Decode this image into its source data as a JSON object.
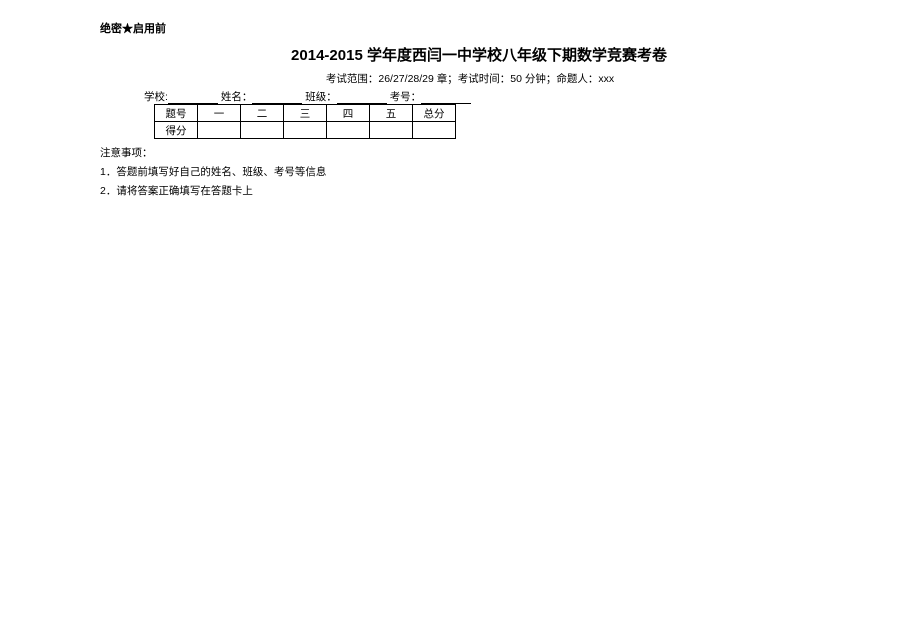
{
  "topSecret": "绝密★启用前",
  "title": "2014-2015 学年度西闫一中学校八年级下期数学竞赛考卷",
  "subtitle": "考试范围：26/27/28/29 章；考试时间：50 分钟；命题人：xxx",
  "info": {
    "schoolLabel": "学校:",
    "nameLabel": "姓名：",
    "classLabel": "班级：",
    "idLabel": "考号："
  },
  "table": {
    "headers": [
      "题号",
      "一",
      "二",
      "三",
      "四",
      "五",
      "总分"
    ],
    "row2Label": "得分"
  },
  "noticeHead": "注意事项：",
  "notice1": "1．答题前填写好自己的姓名、班级、考号等信息",
  "notice2": "2．请将答案正确填写在答题卡上"
}
